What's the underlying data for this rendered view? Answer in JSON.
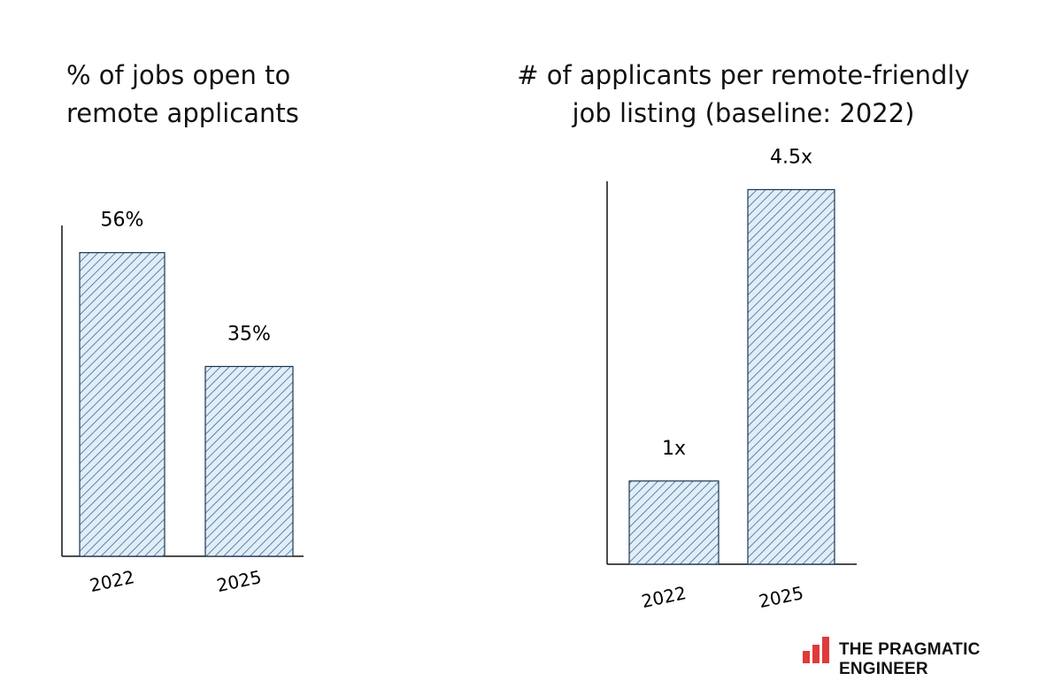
{
  "chart_data": [
    {
      "type": "bar",
      "title": "% of jobs open to\nremote applicants",
      "categories": [
        "2022",
        "2025"
      ],
      "values": [
        56,
        35
      ],
      "value_labels": [
        "56%",
        "35%"
      ],
      "color": "#2f6da0",
      "ylim": [
        0,
        61
      ]
    },
    {
      "type": "bar",
      "title": "# of applicants per remote-friendly\njob listing (baseline: 2022)",
      "categories": [
        "2022",
        "2025"
      ],
      "values": [
        1,
        4.5
      ],
      "value_labels": [
        "1x",
        "4.5x"
      ],
      "color": "#2f6da0",
      "ylim": [
        0,
        4.6
      ]
    }
  ],
  "brand": "THE PRAGMATIC ENGINEER"
}
